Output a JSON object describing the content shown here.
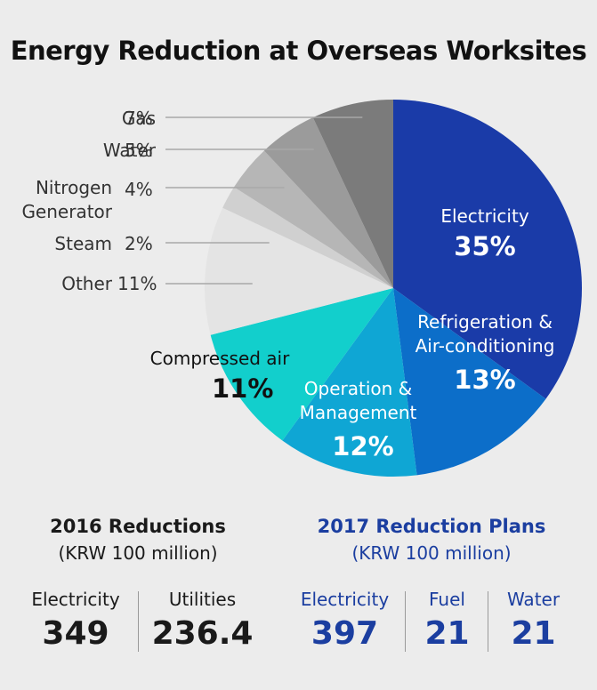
{
  "chart_data": {
    "type": "pie",
    "title": "Energy Reduction at Overseas Worksites",
    "slices": [
      {
        "label": "Electricity",
        "value": 35,
        "pct": "35%",
        "color": "#1a3ba8"
      },
      {
        "label": "Refrigeration & Air-conditioning",
        "value": 13,
        "pct": "13%",
        "color": "#0c6ec9"
      },
      {
        "label": "Operation & Management",
        "value": 12,
        "pct": "12%",
        "color": "#0fa6d4"
      },
      {
        "label": "Compressed air",
        "value": 11,
        "pct": "11%",
        "color": "#12cfcc"
      },
      {
        "label": "Other",
        "value": 11,
        "pct": "11%",
        "color": "#e4e4e4"
      },
      {
        "label": "Steam",
        "value": 2,
        "pct": "2%",
        "color": "#d0d0d0"
      },
      {
        "label": "Nitrogen Generator",
        "value": 4,
        "pct": "4%",
        "color": "#b6b6b6"
      },
      {
        "label": "Water",
        "value": 5,
        "pct": "5%",
        "color": "#9b9b9b"
      },
      {
        "label": "Gas",
        "value": 7,
        "pct": "7%",
        "color": "#7b7b7b"
      }
    ],
    "labels": {
      "electricity_name": "Electricity",
      "refrig_line1": "Refrigeration &",
      "refrig_line2": "Air-conditioning",
      "opm_line1": "Operation &",
      "opm_line2": "Management",
      "compressed": "Compressed air",
      "gas_name": "Gas",
      "water_name": "Water",
      "nitrogen_line1": "Nitrogen",
      "nitrogen_line2": "Generator",
      "steam_name": "Steam",
      "other_name": "Other"
    }
  },
  "stats": {
    "y2016": {
      "title": "2016 Reductions",
      "unit": "(KRW 100 million)",
      "items": [
        {
          "label": "Electricity",
          "value": "349"
        },
        {
          "label": "Utilities",
          "value": "236.4"
        }
      ]
    },
    "y2017": {
      "title": "2017 Reduction Plans",
      "unit": "(KRW 100 million)",
      "items": [
        {
          "label": "Electricity",
          "value": "397"
        },
        {
          "label": "Fuel",
          "value": "21"
        },
        {
          "label": "Water",
          "value": "21"
        }
      ]
    }
  }
}
